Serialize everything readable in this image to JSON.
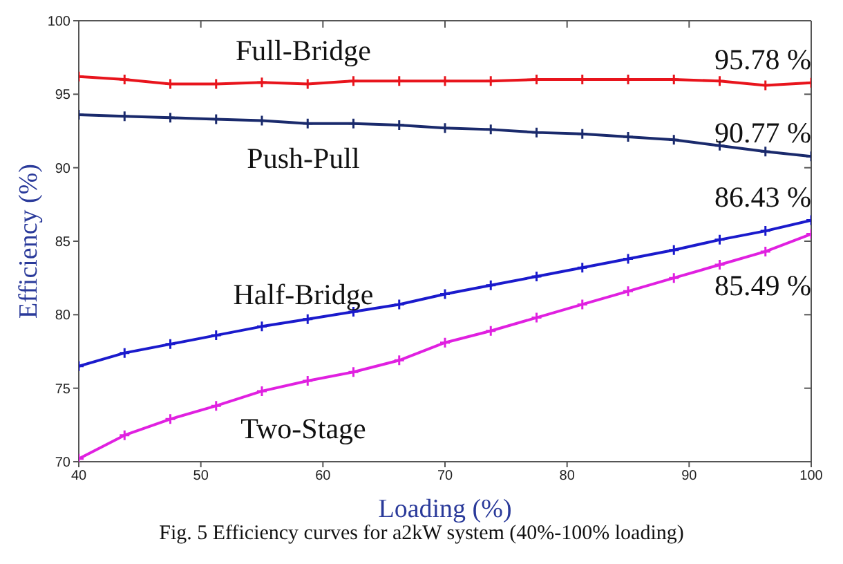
{
  "chart_data": {
    "type": "line",
    "xlabel": "Loading (%)",
    "ylabel": "Efficiency (%)",
    "x": [
      40,
      43.75,
      47.5,
      51.25,
      55,
      58.75,
      62.5,
      66.25,
      70,
      73.75,
      77.5,
      81.25,
      85,
      88.75,
      92.5,
      96.25,
      100
    ],
    "series": [
      {
        "name": "Full-Bridge",
        "color": "#e8141c",
        "values": [
          96.2,
          96.0,
          95.7,
          95.7,
          95.8,
          95.7,
          95.9,
          95.9,
          95.9,
          95.9,
          96.0,
          96.0,
          96.0,
          96.0,
          95.9,
          95.6,
          95.78
        ],
        "value_labels": [
          null,
          null,
          null,
          null,
          null,
          null,
          null,
          null,
          null,
          null,
          null,
          null,
          null,
          null,
          null,
          null,
          "95.78 %"
        ]
      },
      {
        "name": "Push-Pull",
        "color": "#1a2a6c",
        "values": [
          93.6,
          93.5,
          93.4,
          93.3,
          93.2,
          93.0,
          93.0,
          92.9,
          92.7,
          92.6,
          92.4,
          92.3,
          92.1,
          91.9,
          91.5,
          91.1,
          90.77
        ],
        "value_labels": [
          null,
          null,
          null,
          null,
          null,
          null,
          null,
          null,
          null,
          null,
          null,
          null,
          null,
          null,
          null,
          null,
          "90.77 %"
        ]
      },
      {
        "name": "Half-Bridge",
        "color": "#1a1acc",
        "values": [
          76.5,
          77.4,
          78.0,
          78.6,
          79.2,
          79.7,
          80.2,
          80.7,
          81.4,
          82.0,
          82.6,
          83.2,
          83.8,
          84.4,
          85.1,
          85.7,
          86.43
        ],
        "value_labels": [
          null,
          null,
          null,
          null,
          null,
          null,
          null,
          null,
          null,
          null,
          null,
          null,
          null,
          null,
          null,
          null,
          "86.43 %"
        ]
      },
      {
        "name": "Two-Stage",
        "color": "#e020e0",
        "values": [
          70.2,
          71.8,
          72.9,
          73.8,
          74.8,
          75.5,
          76.1,
          76.9,
          78.1,
          78.9,
          79.8,
          80.7,
          81.6,
          82.5,
          83.4,
          84.3,
          85.49
        ],
        "value_labels": [
          null,
          null,
          null,
          null,
          null,
          null,
          null,
          null,
          null,
          null,
          null,
          null,
          null,
          null,
          null,
          null,
          "85.49 %"
        ]
      }
    ],
    "xlim": [
      40,
      100
    ],
    "xticks": [
      40,
      50,
      60,
      70,
      80,
      90,
      100
    ],
    "ylim": [
      70,
      100
    ],
    "yticks": [
      70,
      75,
      80,
      85,
      90,
      95,
      100
    ],
    "grid": false,
    "legend": false,
    "marker": "cross",
    "line_style": "solid",
    "annotations": [
      "Fig. 5 Efficiency curves for a2kW system (40%-100% loading)"
    ]
  }
}
